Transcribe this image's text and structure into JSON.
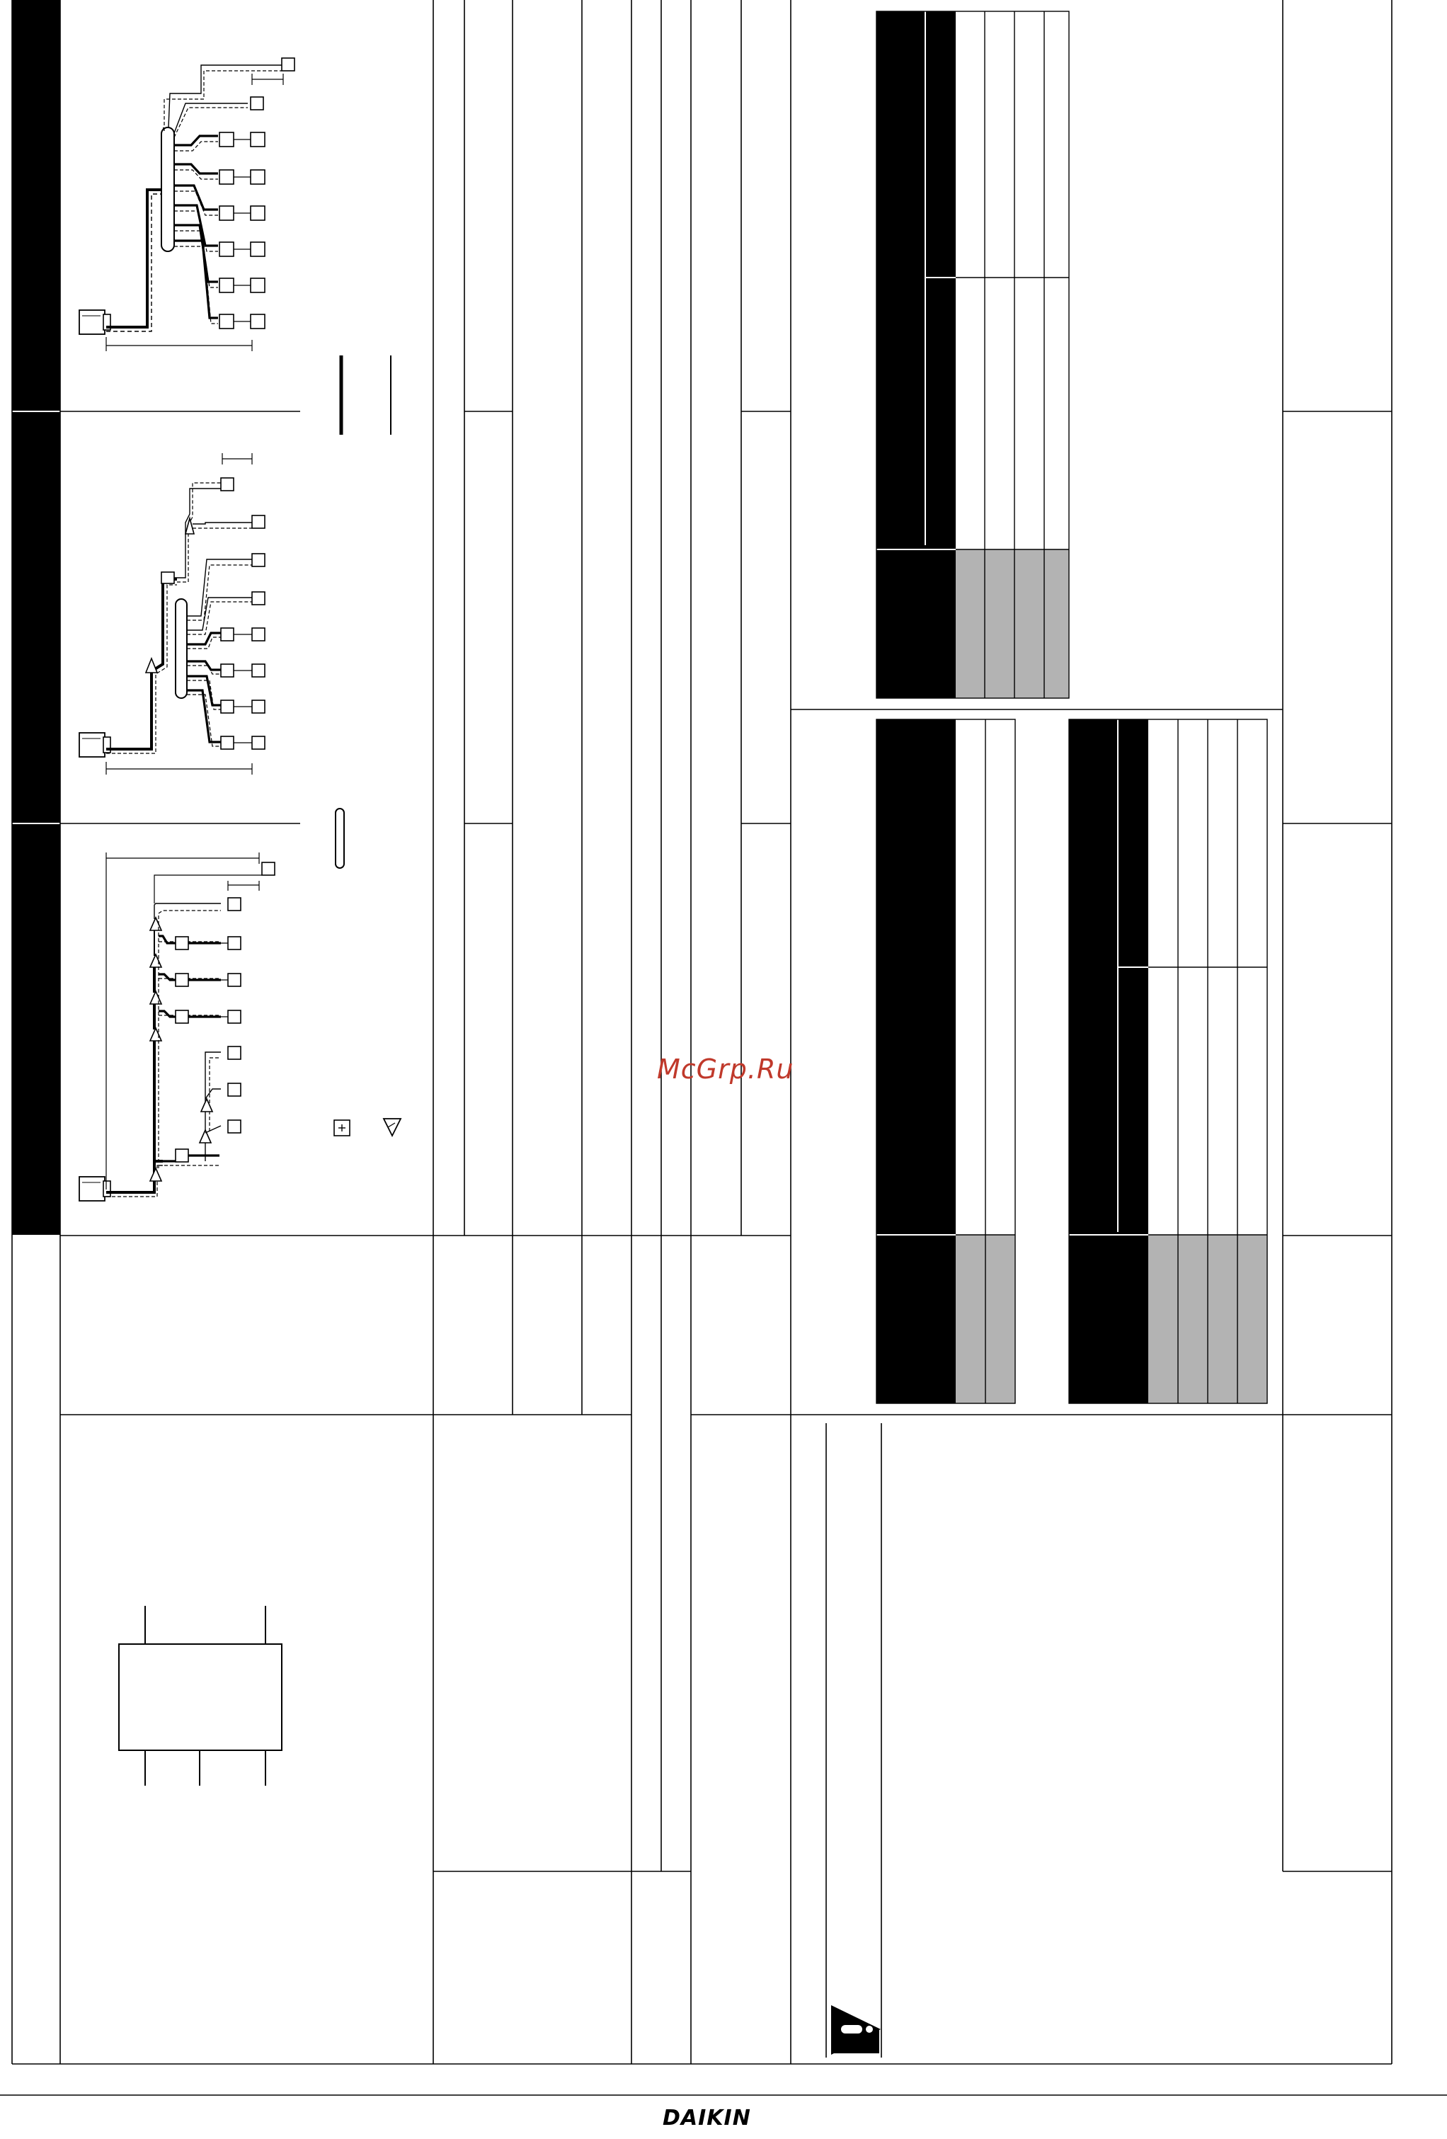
{
  "page": {
    "watermark": "McGrp.Ru",
    "brand": "DAIKIN",
    "accent_color": "#c0392b",
    "table_shade_color": "#b3b3b3"
  },
  "diagrams": {
    "layouts": [
      "refnet-header-layout",
      "combined-layout",
      "refnet-joint-layout"
    ],
    "legend_icons": [
      "refnet-header-icon",
      "refnet-joint-icon",
      "pipe-length-icon"
    ]
  },
  "notice": {
    "icon": "warning-icon"
  }
}
